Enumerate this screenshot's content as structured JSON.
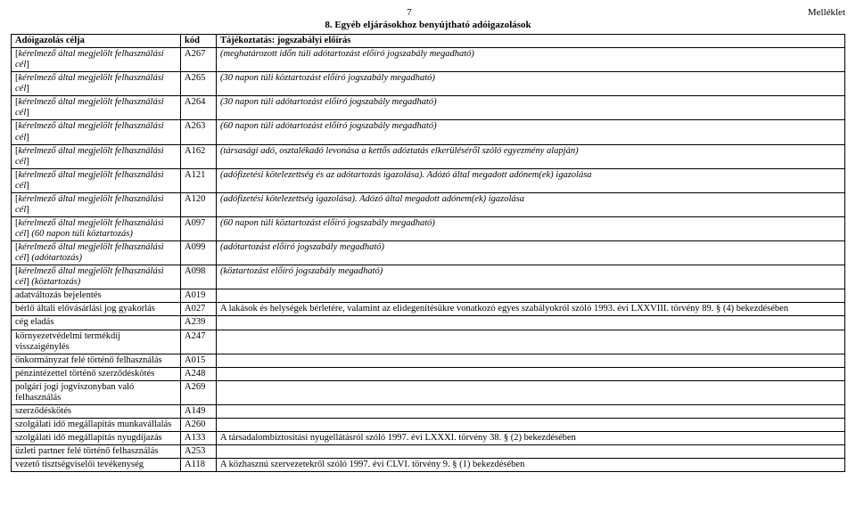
{
  "header": {
    "page_number": "7",
    "attachment_label": "Melléklet",
    "section_title": "8. Egyéb eljárásokhoz benyújtható adóigazolások"
  },
  "columns": {
    "purpose": "Adóigazolás célja",
    "code": "kód",
    "desc": "Tájékoztatás: jogszabályi előírás"
  },
  "rows": [
    {
      "purpose_html": "[<i>kérelmező által megjelölt felhasználási cél</i>]",
      "code": "A267",
      "desc_html": "<i>(meghatározott időn túli adótartozást előíró jogszabály megadható)</i>"
    },
    {
      "purpose_html": "[<i>kérelmező által megjelölt felhasználási cél</i>]",
      "code": "A265",
      "desc_html": "<i>(30 napon túli köztartozást előíró jogszabály megadható)</i>"
    },
    {
      "purpose_html": "[<i>kérelmező által megjelölt felhasználási cél</i>]",
      "code": "A264",
      "desc_html": "<i>(30 napon túli adótartozást előíró jogszabály megadható)</i>"
    },
    {
      "purpose_html": "[<i>kérelmező által megjelölt felhasználási cél</i>]",
      "code": "A263",
      "desc_html": "<i>(60 napon túli adótartozást előíró jogszabály megadható)</i>"
    },
    {
      "purpose_html": "[<i>kérelmező által megjelölt felhasználási cél</i>]",
      "code": "A162",
      "desc_html": "<i>(társasági adó, osztalékadó levonása a kettős adóztatás elkerüléséről szóló egyezmény alapján)</i>"
    },
    {
      "purpose_html": "[<i>kérelmező által megjelölt felhasználási cél</i>]",
      "code": "A121",
      "desc_html": "<i>(adófizetési kötelezettség és az adótartozás igazolása). Adózó által megadott adónem(ek) igazolása</i>"
    },
    {
      "purpose_html": "[<i>kérelmező által megjelölt felhasználási cél</i>]",
      "code": "A120",
      "desc_html": "<i>(adófizetési kötelezettség igazolása). Adózó által megadott adónem(ek) igazolása</i>"
    },
    {
      "purpose_html": "[<i>kérelmező által megjelölt felhasználási cél</i>] <i>(60 napon túli köztartozás)</i>",
      "code": "A097",
      "desc_html": "<i>(60 napon túli köztartozást előíró jogszabály megadható)</i>"
    },
    {
      "purpose_html": "[<i>kérelmező által megjelölt felhasználási cél</i>] <i>(adótartozás)</i>",
      "code": "A099",
      "desc_html": "<i>(adótartozást előíró jogszabály megadható)</i>"
    },
    {
      "purpose_html": "[<i>kérelmező által megjelölt felhasználási cél</i>] <i>(köztartozás)</i>",
      "code": "A098",
      "desc_html": "<i>(köztartozást előíró jogszabály megadható)</i>"
    },
    {
      "purpose_html": "adatváltozás bejelentés",
      "code": "A019",
      "desc_html": ""
    },
    {
      "purpose_html": "bérlő általi elővásárlási jog gyakorlás",
      "code": "A027",
      "desc_html": "A lakások és helységek bérletére, valamint az elidegenítésükre vonatkozó egyes szabályokról szóló 1993. évi LXXVIII. törvény 89. § (4) bekezdésében"
    },
    {
      "purpose_html": "cég eladás",
      "code": "A239",
      "desc_html": ""
    },
    {
      "purpose_html": "környezetvédelmi termékdíj visszaigénylés",
      "code": "A247",
      "desc_html": ""
    },
    {
      "purpose_html": "önkormányzat felé történő felhasználás",
      "code": "A015",
      "desc_html": ""
    },
    {
      "purpose_html": "pénzintézettel történő szerződéskötés",
      "code": "A248",
      "desc_html": ""
    },
    {
      "purpose_html": "polgári jogi jogviszonyban való felhasználás",
      "code": "A269",
      "desc_html": ""
    },
    {
      "purpose_html": "szerződéskötés",
      "code": "A149",
      "desc_html": ""
    },
    {
      "purpose_html": "szolgálati idő megállapítás munkavállalás",
      "code": "A260",
      "desc_html": ""
    },
    {
      "purpose_html": "szolgálati idő megállapítás nyugdíjazás",
      "code": "A133",
      "desc_html": "A társadalombiztosítási nyugellátásról szóló 1997. évi LXXXI. törvény 38. § (2) bekezdésében"
    },
    {
      "purpose_html": "üzleti partner felé történő felhasználás",
      "code": "A253",
      "desc_html": ""
    },
    {
      "purpose_html": "vezető tisztségviselői tevékenység",
      "code": "A118",
      "desc_html": "A közhasznú szervezetekről szóló 1997. évi CLVI. törvény 9. § (1) bekezdésében"
    }
  ]
}
